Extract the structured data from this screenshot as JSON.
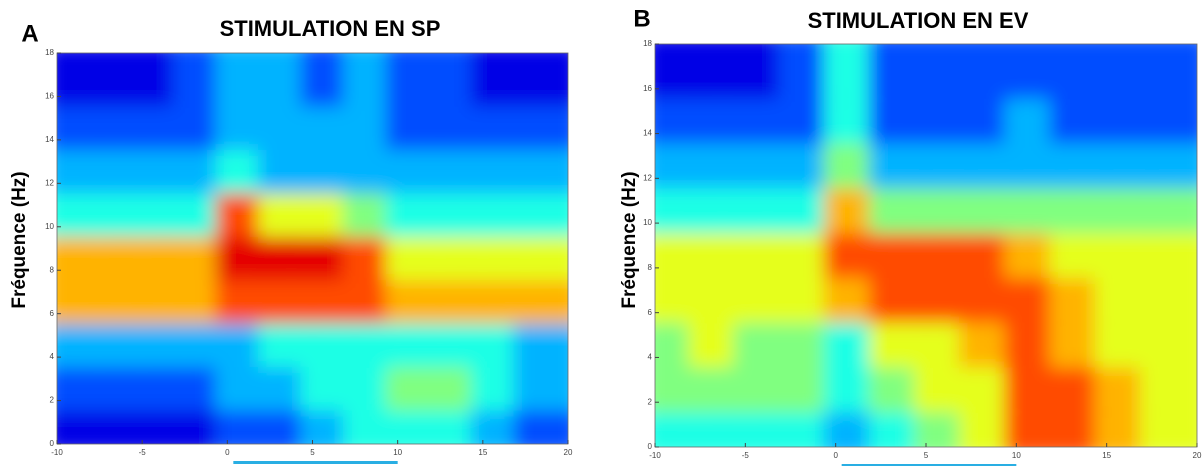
{
  "chart_data": [
    {
      "type": "heatmap",
      "letter": "A",
      "title": "STIMULATION EN SP",
      "y_label": "Fréquence (Hz)",
      "colormap": "jet",
      "zlim": [
        0,
        10
      ],
      "xbins": [
        -10,
        -7.5,
        -5,
        -2.5,
        0,
        2.5,
        5,
        7.5,
        10,
        12.5,
        15,
        17.5,
        20
      ],
      "ybins": [
        0,
        2,
        4,
        6,
        8,
        10,
        12,
        14,
        16,
        18
      ],
      "values": [
        [
          1,
          1,
          1,
          1,
          2,
          2,
          3,
          4,
          4,
          4,
          3,
          2
        ],
        [
          2,
          2,
          2,
          2,
          3,
          3,
          4,
          4,
          5,
          5,
          4,
          3
        ],
        [
          3,
          3,
          3,
          3,
          3,
          4,
          4,
          4,
          4,
          4,
          4,
          3
        ],
        [
          7,
          7,
          7,
          7,
          8,
          8,
          8,
          8,
          7,
          7,
          7,
          7
        ],
        [
          7,
          7,
          7,
          7,
          9,
          9,
          9,
          8,
          6,
          6,
          6,
          6
        ],
        [
          4,
          4,
          4,
          4,
          8,
          6,
          6,
          5,
          4,
          4,
          4,
          4
        ],
        [
          3,
          3,
          3,
          3,
          4,
          3,
          3,
          3,
          3,
          3,
          3,
          3
        ],
        [
          2,
          2,
          2,
          2,
          3,
          3,
          3,
          3,
          2,
          2,
          2,
          2
        ],
        [
          1,
          1,
          1,
          2,
          3,
          3,
          2,
          3,
          2,
          2,
          1,
          1
        ]
      ],
      "stimulus": [
        0,
        10
      ],
      "stimulus_color": "#29aee3",
      "xlim": [
        -10,
        20
      ],
      "xticks": [
        -10,
        -5,
        0,
        5,
        10,
        15,
        20
      ],
      "ylim": [
        0,
        18
      ],
      "yticks": [
        0,
        2,
        4,
        6,
        8,
        10,
        12,
        14,
        16,
        18
      ]
    },
    {
      "type": "heatmap",
      "letter": "B",
      "title": "STIMULATION EN EV",
      "y_label": "Fréquence (Hz)",
      "colormap": "jet",
      "zlim": [
        0,
        10
      ],
      "xbins": [
        -10,
        -7.5,
        -5,
        -2.5,
        0,
        2.5,
        5,
        7.5,
        10,
        12.5,
        15,
        17.5,
        20
      ],
      "ybins": [
        0,
        2,
        4,
        6,
        8,
        10,
        12,
        14,
        16,
        18
      ],
      "values": [
        [
          4,
          4,
          4,
          4,
          3,
          4,
          5,
          6,
          8,
          8,
          7,
          6
        ],
        [
          5,
          5,
          5,
          5,
          4,
          5,
          6,
          6,
          8,
          8,
          7,
          6
        ],
        [
          5,
          6,
          5,
          5,
          4,
          6,
          6,
          7,
          8,
          7,
          6,
          6
        ],
        [
          6,
          6,
          6,
          6,
          7,
          8,
          8,
          8,
          8,
          7,
          6,
          6
        ],
        [
          6,
          6,
          6,
          6,
          8,
          8,
          8,
          8,
          7,
          6,
          6,
          6
        ],
        [
          4,
          4,
          4,
          4,
          7,
          5,
          5,
          5,
          5,
          5,
          5,
          5
        ],
        [
          3,
          3,
          3,
          3,
          5,
          3,
          3,
          3,
          3,
          3,
          3,
          3
        ],
        [
          2,
          2,
          2,
          2,
          4,
          2,
          2,
          2,
          3,
          2,
          2,
          2
        ],
        [
          1,
          1,
          1,
          2,
          4,
          2,
          2,
          2,
          2,
          2,
          2,
          2
        ]
      ],
      "stimulus": [
        0,
        10
      ],
      "stimulus_color": "#29aee3",
      "xlim": [
        -10,
        20
      ],
      "xticks": [
        -10,
        -5,
        0,
        5,
        10,
        15,
        20
      ],
      "ylim": [
        0,
        18
      ],
      "yticks": [
        0,
        2,
        4,
        6,
        8,
        10,
        12,
        14,
        16,
        18
      ]
    }
  ]
}
